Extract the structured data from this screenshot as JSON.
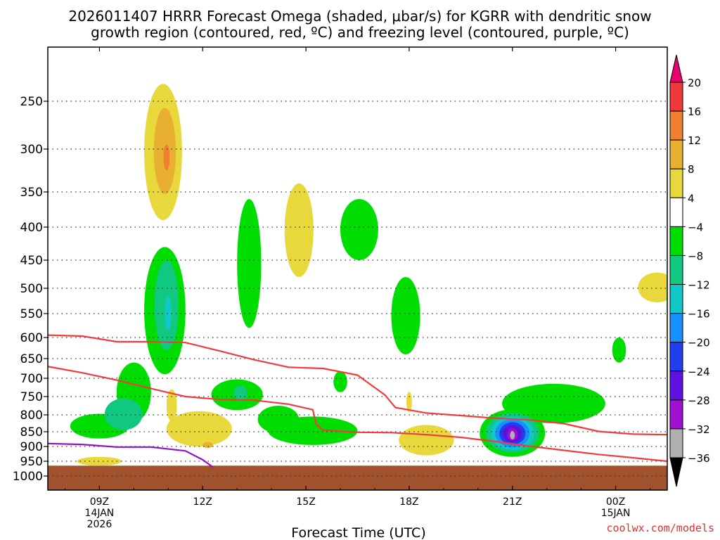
{
  "chart_data": {
    "type": "time-height-cross-section",
    "title_line1": "2026011407 HRRR Forecast Omega (shaded, μbar/s) for KGRR with dendritic snow",
    "title_line2": "growth region (contoured, red, ºC) and freezing level (contoured, purple, ºC)",
    "xlabel": "Forecast Time (UTC)",
    "credit": "coolwx.com/models",
    "xlim_hours": [
      7.5,
      25.5
    ],
    "x_ticks": [
      {
        "hour": 9,
        "label": "09Z",
        "sub1": "14JAN",
        "sub2": "2026"
      },
      {
        "hour": 12,
        "label": "12Z",
        "sub1": "",
        "sub2": ""
      },
      {
        "hour": 15,
        "label": "15Z",
        "sub1": "",
        "sub2": ""
      },
      {
        "hour": 18,
        "label": "18Z",
        "sub1": "",
        "sub2": ""
      },
      {
        "hour": 21,
        "label": "21Z",
        "sub1": "",
        "sub2": ""
      },
      {
        "hour": 24,
        "label": "00Z",
        "sub1": "15JAN",
        "sub2": ""
      }
    ],
    "ylabel": "Pressure (hPa)",
    "ylim_hpa": [
      200,
      1050
    ],
    "y_ticks": [
      250,
      300,
      350,
      400,
      450,
      500,
      550,
      600,
      650,
      700,
      750,
      800,
      850,
      900,
      950,
      1000
    ],
    "colorbar": {
      "labels": [
        "20",
        "16",
        "12",
        "8",
        "4",
        "−4",
        "−8",
        "−12",
        "−16",
        "−20",
        "−24",
        "−28",
        "−32",
        "−36"
      ],
      "colors": [
        "#e8006e",
        "#ee3a3a",
        "#ee8030",
        "#e8b030",
        "#e8d83c",
        "#ffffff",
        "#00dd00",
        "#10c880",
        "#10c8c8",
        "#1890ff",
        "#2040f0",
        "#6010e0",
        "#a010d0",
        "#b0b0b0",
        "#000000"
      ]
    },
    "omega_blobs": [
      {
        "level": 4,
        "t": 10.85,
        "p": 312,
        "dt": 0.55,
        "dp": 78
      },
      {
        "level": 8,
        "t": 10.9,
        "p": 305,
        "dt": 0.32,
        "dp": 48
      },
      {
        "level": 12,
        "t": 10.95,
        "p": 310,
        "dt": 0.09,
        "dp": 15
      },
      {
        "level": -4,
        "t": 13.35,
        "p": 470,
        "dt": 0.35,
        "dp": 110
      },
      {
        "level": 4,
        "t": 14.8,
        "p": 410,
        "dt": 0.42,
        "dp": 70
      },
      {
        "level": -4,
        "t": 16.55,
        "p": 405,
        "dt": 0.55,
        "dp": 45
      },
      {
        "level": 4,
        "t": 25.2,
        "p": 500,
        "dt": 0.55,
        "dp": 28
      },
      {
        "level": -4,
        "t": 17.9,
        "p": 560,
        "dt": 0.42,
        "dp": 80
      },
      {
        "level": -4,
        "t": 24.1,
        "p": 630,
        "dt": 0.2,
        "dp": 30
      },
      {
        "level": -4,
        "t": 10.9,
        "p": 560,
        "dt": 0.6,
        "dp": 130
      },
      {
        "level": -8,
        "t": 10.95,
        "p": 540,
        "dt": 0.35,
        "dp": 90
      },
      {
        "level": -12,
        "t": 11.0,
        "p": 550,
        "dt": 0.1,
        "dp": 35
      },
      {
        "level": -4,
        "t": 9.0,
        "p": 835,
        "dt": 0.85,
        "dp": 38
      },
      {
        "level": -4,
        "t": 10.0,
        "p": 740,
        "dt": 0.5,
        "dp": 80
      },
      {
        "level": -8,
        "t": 9.7,
        "p": 800,
        "dt": 0.55,
        "dp": 45
      },
      {
        "level": -4,
        "t": 13.0,
        "p": 745,
        "dt": 0.75,
        "dp": 42
      },
      {
        "level": -8,
        "t": 13.1,
        "p": 740,
        "dt": 0.2,
        "dp": 20
      },
      {
        "level": -4,
        "t": 15.2,
        "p": 850,
        "dt": 1.3,
        "dp": 45
      },
      {
        "level": -4,
        "t": 14.2,
        "p": 815,
        "dt": 0.6,
        "dp": 40
      },
      {
        "level": -4,
        "t": 16.0,
        "p": 710,
        "dt": 0.2,
        "dp": 28
      },
      {
        "level": -4,
        "t": 22.2,
        "p": 770,
        "dt": 1.5,
        "dp": 55
      },
      {
        "level": -4,
        "t": 21.0,
        "p": 860,
        "dt": 0.95,
        "dp": 75
      },
      {
        "level": -8,
        "t": 21.0,
        "p": 858,
        "dt": 0.78,
        "dp": 63
      },
      {
        "level": -12,
        "t": 21.0,
        "p": 858,
        "dt": 0.63,
        "dp": 53
      },
      {
        "level": -16,
        "t": 21.0,
        "p": 858,
        "dt": 0.5,
        "dp": 45
      },
      {
        "level": -20,
        "t": 21.0,
        "p": 858,
        "dt": 0.38,
        "dp": 36
      },
      {
        "level": -24,
        "t": 21.0,
        "p": 858,
        "dt": 0.28,
        "dp": 28
      },
      {
        "level": -28,
        "t": 21.0,
        "p": 860,
        "dt": 0.15,
        "dp": 20
      },
      {
        "level": -32,
        "t": 21.0,
        "p": 862,
        "dt": 0.07,
        "dp": 14
      },
      {
        "level": 4,
        "t": 11.9,
        "p": 845,
        "dt": 0.95,
        "dp": 55
      },
      {
        "level": 4,
        "t": 11.1,
        "p": 775,
        "dt": 0.15,
        "dp": 45
      },
      {
        "level": 8,
        "t": 12.15,
        "p": 895,
        "dt": 0.15,
        "dp": 10
      },
      {
        "level": 4,
        "t": 9.0,
        "p": 950,
        "dt": 0.65,
        "dp": 15
      },
      {
        "level": 4,
        "t": 18.5,
        "p": 880,
        "dt": 0.8,
        "dp": 50
      },
      {
        "level": 4,
        "t": 18.0,
        "p": 765,
        "dt": 0.08,
        "dp": 28
      }
    ],
    "dendritic_contours": [
      {
        "points": [
          [
            7.5,
            595
          ],
          [
            8.5,
            597
          ],
          [
            9.5,
            610
          ],
          [
            10.5,
            610
          ],
          [
            11.5,
            612
          ],
          [
            12.5,
            632
          ],
          [
            13.5,
            653
          ],
          [
            14.5,
            672
          ],
          [
            15.5,
            675
          ],
          [
            16.5,
            692
          ],
          [
            17.3,
            746
          ],
          [
            17.6,
            780
          ],
          [
            18.5,
            795
          ],
          [
            19.5,
            802
          ],
          [
            20.5,
            810
          ],
          [
            21.5,
            815
          ],
          [
            22.5,
            826
          ],
          [
            23.5,
            849
          ],
          [
            24.5,
            858
          ],
          [
            25.5,
            860
          ]
        ]
      },
      {
        "points": [
          [
            7.5,
            670
          ],
          [
            8.5,
            686
          ],
          [
            9.5,
            705
          ],
          [
            10.5,
            728
          ],
          [
            11.5,
            750
          ],
          [
            12.5,
            758
          ],
          [
            13.5,
            760
          ],
          [
            14.5,
            771
          ],
          [
            15.2,
            786
          ],
          [
            15.3,
            828
          ],
          [
            15.5,
            845
          ],
          [
            16.5,
            852
          ],
          [
            17.5,
            853
          ],
          [
            18.5,
            860
          ],
          [
            19.5,
            869
          ],
          [
            20.5,
            883
          ],
          [
            21.5,
            899
          ],
          [
            22.5,
            913
          ],
          [
            23.5,
            927
          ],
          [
            24.5,
            938
          ],
          [
            25.5,
            950
          ]
        ]
      }
    ],
    "freezing_level": {
      "points": [
        [
          7.5,
          890
        ],
        [
          8.5,
          893
        ],
        [
          9.5,
          902
        ],
        [
          10.5,
          902
        ],
        [
          11.5,
          915
        ],
        [
          12.0,
          945
        ],
        [
          12.3,
          970
        ]
      ]
    },
    "terrain_hpa": 965
  }
}
